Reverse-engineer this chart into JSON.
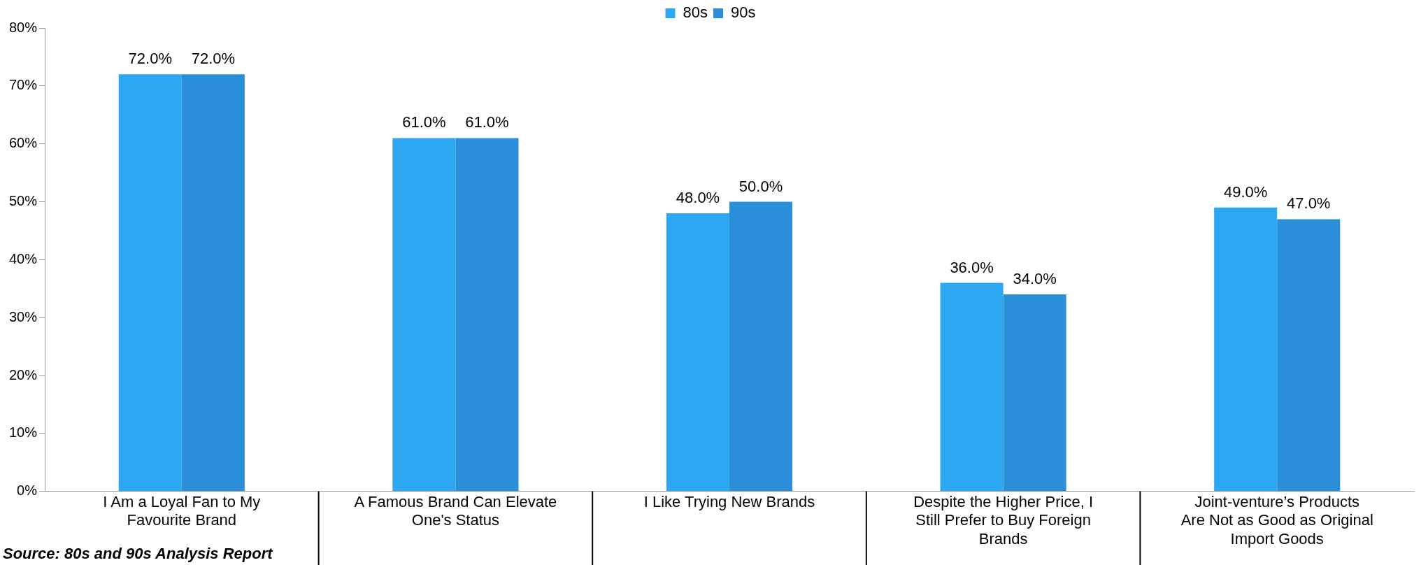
{
  "chart_data": {
    "type": "bar",
    "categories": [
      "I Am a Loyal Fan to My Favourite Brand",
      "A Famous Brand Can Elevate One's Status",
      "I Like Trying New Brands",
      "Despite the Higher Price, I Still Prefer to Buy Foreign Brands",
      "Joint-venture’s Products Are Not as Good as Original Import Goods"
    ],
    "series": [
      {
        "name": "80s",
        "color": "#2ea7f3",
        "values": [
          72,
          61,
          48,
          36,
          49
        ],
        "value_labels": [
          "72.0%",
          "61.0%",
          "48.0%",
          "36.0%",
          "49.0%"
        ]
      },
      {
        "name": "90s",
        "color": "#2a8fd8",
        "values": [
          72,
          61,
          50,
          34,
          47
        ],
        "value_labels": [
          "72.0%",
          "61.0%",
          "50.0%",
          "34.0%",
          "47.0%"
        ]
      }
    ],
    "ylim": [
      0,
      80
    ],
    "yticks": [
      {
        "value": 0,
        "label": "0%"
      },
      {
        "value": 10,
        "label": "10%"
      },
      {
        "value": 20,
        "label": "20%"
      },
      {
        "value": 30,
        "label": "30%"
      },
      {
        "value": 40,
        "label": "40%"
      },
      {
        "value": 50,
        "label": "50%"
      },
      {
        "value": 60,
        "label": "60%"
      },
      {
        "value": 70,
        "label": "70%"
      },
      {
        "value": 80,
        "label": "80%"
      }
    ],
    "grid": false,
    "legend": "top",
    "annotations": [
      "Source: 80s and 90s Analysis Report"
    ]
  }
}
